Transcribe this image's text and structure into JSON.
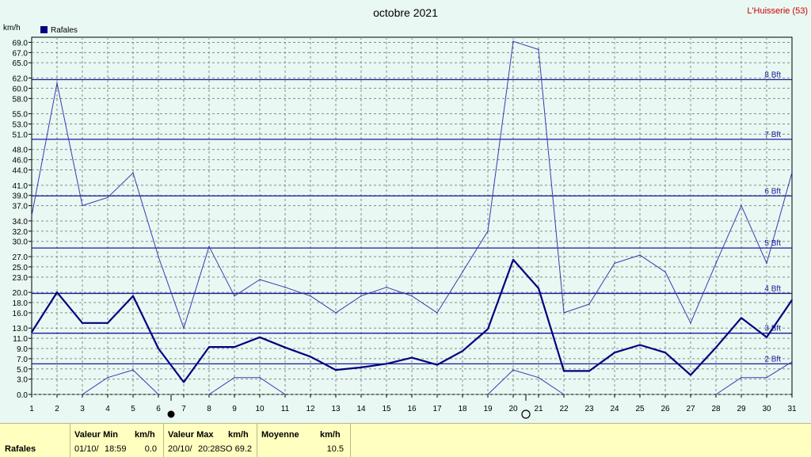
{
  "header": {
    "title": "octobre 2021",
    "station": "L'Huisserie (53)",
    "unit": "km/h",
    "legend": "Rafales",
    "legend_color": "#000080"
  },
  "chart_data": {
    "type": "line",
    "title": "octobre 2021",
    "ylabel": "km/h",
    "ylim": [
      0,
      70
    ],
    "y_ticks": [
      "0.0",
      "3.0",
      "5.0",
      "7.0",
      "9.0",
      "11.0",
      "13.0",
      "16.0",
      "18.0",
      "20.0",
      "23.0",
      "25.0",
      "27.0",
      "30.0",
      "32.0",
      "34.0",
      "37.0",
      "39.0",
      "41.0",
      "44.0",
      "46.0",
      "48.0",
      "51.0",
      "53.0",
      "55.0",
      "58.0",
      "60.0",
      "62.0",
      "65.0",
      "67.0",
      "69.0"
    ],
    "x": [
      1,
      2,
      3,
      4,
      5,
      6,
      7,
      8,
      9,
      10,
      11,
      12,
      13,
      14,
      15,
      16,
      17,
      18,
      19,
      20,
      21,
      22,
      23,
      24,
      25,
      26,
      27,
      28,
      29,
      30,
      31
    ],
    "series": [
      {
        "name": "Rafales",
        "role": "mean",
        "color": "#000080",
        "values": [
          12.2,
          20.0,
          14.0,
          14.0,
          19.3,
          9.0,
          2.4,
          9.3,
          9.3,
          11.2,
          9.2,
          7.4,
          4.8,
          5.3,
          6.0,
          7.2,
          5.8,
          8.5,
          12.8,
          26.4,
          20.8,
          4.6,
          4.6,
          8.2,
          9.7,
          8.2,
          3.8,
          9.2,
          15.0,
          11.2,
          18.5
        ]
      },
      {
        "name": "max",
        "role": "max",
        "color": "#3a3ab4",
        "values": [
          35.0,
          61.0,
          37.0,
          38.6,
          43.4,
          27.0,
          13.0,
          29.0,
          19.3,
          22.5,
          21.0,
          19.3,
          16.0,
          19.3,
          21.0,
          19.3,
          16.0,
          24.0,
          32.0,
          69.2,
          67.6,
          16.0,
          17.7,
          25.7,
          27.3,
          24.0,
          14.0,
          25.7,
          37.0,
          25.7,
          43.5
        ]
      },
      {
        "name": "min",
        "role": "min",
        "color": "#3a3ab4",
        "values": [
          null,
          null,
          0.0,
          3.3,
          4.8,
          0.0,
          null,
          0.0,
          3.3,
          3.3,
          0.0,
          null,
          null,
          null,
          null,
          null,
          null,
          null,
          0.0,
          4.8,
          3.3,
          0.0,
          null,
          null,
          null,
          null,
          null,
          0.0,
          3.3,
          3.3,
          6.4
        ]
      }
    ],
    "beaufort_lines": [
      {
        "label": "2 Bft",
        "value": 6.0
      },
      {
        "label": "3 Bft",
        "value": 12.0
      },
      {
        "label": "4 Bft",
        "value": 19.8
      },
      {
        "label": "5 Bft",
        "value": 28.7
      },
      {
        "label": "6 Bft",
        "value": 38.9
      },
      {
        "label": "7 Bft",
        "value": 50.0
      },
      {
        "label": "8 Bft",
        "value": 61.7
      }
    ],
    "moon_markers": [
      {
        "day": 6.5,
        "phase": "new-moon"
      },
      {
        "day": 20.5,
        "phase": "full-moon"
      }
    ],
    "grid": true
  },
  "stats": {
    "row_label": "Rafales",
    "min": {
      "header": "Valeur Min",
      "unit": "km/h",
      "date": "01/10/",
      "time": "18:59",
      "value": "0.0"
    },
    "max": {
      "header": "Valeur Max",
      "unit": "km/h",
      "date": "20/10/",
      "time": "20:28SO",
      "value": "69.2"
    },
    "avg": {
      "header": "Moyenne",
      "unit": "km/h",
      "value": "10.5"
    }
  }
}
